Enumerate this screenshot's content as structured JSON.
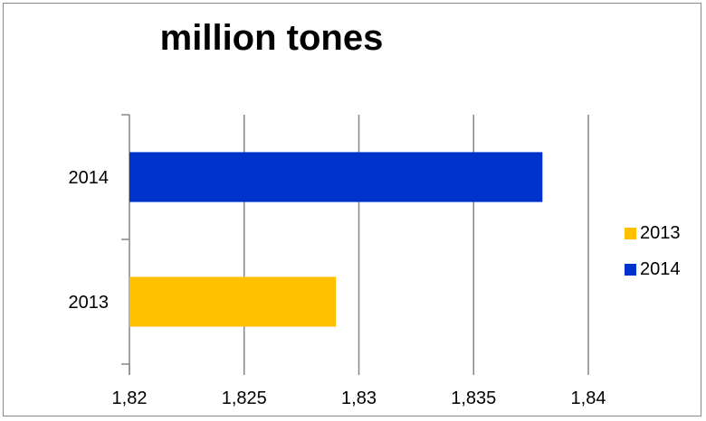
{
  "chart_data": {
    "type": "bar",
    "orientation": "horizontal",
    "title": "million tones",
    "categories": [
      "2013",
      "2014"
    ],
    "series": [
      {
        "name": "2013",
        "values": [
          1.829,
          null
        ],
        "color": "#FFC000"
      },
      {
        "name": "2014",
        "values": [
          null,
          1.838
        ],
        "color": "#0033CC"
      }
    ],
    "xlim": [
      1.82,
      1.84
    ],
    "x_ticks": [
      "1,82",
      "1,825",
      "1,83",
      "1,835",
      "1,84"
    ],
    "x_tick_values": [
      1.82,
      1.825,
      1.83,
      1.835,
      1.84
    ],
    "grid": true,
    "legend_position": "right"
  }
}
